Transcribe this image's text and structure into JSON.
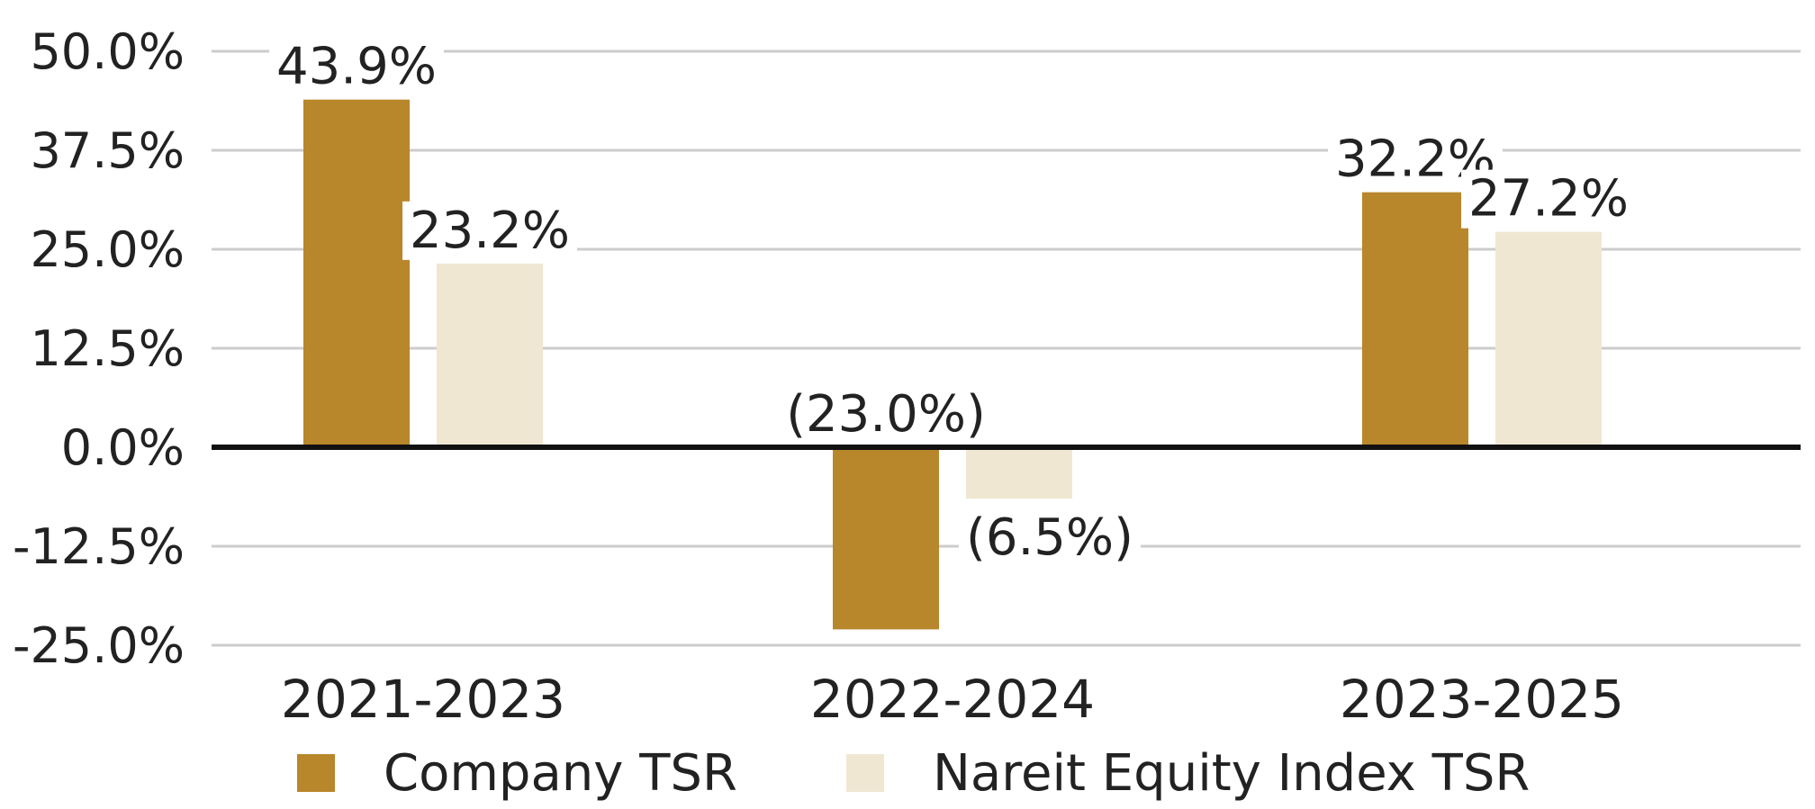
{
  "chart_data": {
    "type": "bar",
    "categories": [
      "2021-2023",
      "2022-2024",
      "2023-2025"
    ],
    "series": [
      {
        "name": "Company TSR",
        "values": [
          43.9,
          -23.0,
          32.2
        ],
        "labels": [
          "43.9%",
          "(23.0%)",
          "32.2%"
        ],
        "color": "#b8862b"
      },
      {
        "name": "Nareit Equity Index TSR",
        "values": [
          23.2,
          -6.5,
          27.2
        ],
        "labels": [
          "23.2%",
          "(6.5%)",
          "27.2%"
        ],
        "color": "#f0e7d3"
      }
    ],
    "yticks": [
      50.0,
      37.5,
      25.0,
      12.5,
      0.0,
      -12.5,
      -25.0
    ],
    "ytick_labels": [
      "50.0%",
      "37.5%",
      "25.0%",
      "12.5%",
      "0.0%",
      "-12.5%",
      "-25.0%"
    ],
    "ylim": [
      -25,
      50
    ],
    "grid": true,
    "legend_position": "bottom",
    "grid_color": "#cccccc",
    "zero_line_color": "#111111"
  }
}
